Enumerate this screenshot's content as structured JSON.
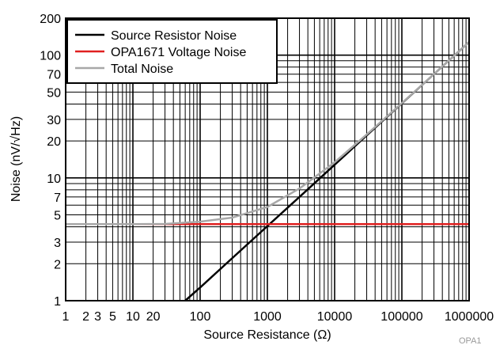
{
  "chart_data": {
    "type": "line",
    "xlabel": "Source Resistance (Ω)",
    "ylabel": "Noise (nV/√Hz)",
    "xscale": "log",
    "yscale": "log",
    "xlim": [
      1,
      1000000
    ],
    "ylim": [
      1,
      200
    ],
    "grid": true,
    "legend_position": "top-left",
    "x_ticks": [
      {
        "value": 1,
        "label": "1"
      },
      {
        "value": 2,
        "label": "2"
      },
      {
        "value": 3,
        "label": "3"
      },
      {
        "value": 5,
        "label": "5"
      },
      {
        "value": 10,
        "label": "10"
      },
      {
        "value": 20,
        "label": "20"
      },
      {
        "value": 100,
        "label": "100"
      },
      {
        "value": 1000,
        "label": "1000"
      },
      {
        "value": 10000,
        "label": "10000"
      },
      {
        "value": 100000,
        "label": "100000"
      },
      {
        "value": 1000000,
        "label": "1000000"
      }
    ],
    "y_ticks": [
      {
        "value": 1,
        "label": "1"
      },
      {
        "value": 2,
        "label": "2"
      },
      {
        "value": 3,
        "label": "3"
      },
      {
        "value": 5,
        "label": "5"
      },
      {
        "value": 7,
        "label": "7"
      },
      {
        "value": 10,
        "label": "10"
      },
      {
        "value": 20,
        "label": "20"
      },
      {
        "value": 30,
        "label": "30"
      },
      {
        "value": 50,
        "label": "50"
      },
      {
        "value": 70,
        "label": "70"
      },
      {
        "value": 100,
        "label": "100"
      },
      {
        "value": 200,
        "label": "200"
      }
    ],
    "series": [
      {
        "name": "Source Resistor Noise",
        "color": "#000000",
        "x": [
          60,
          100,
          300,
          1000,
          3000,
          10000,
          30000,
          100000,
          300000,
          1000000
        ],
        "y": [
          1.0,
          1.28,
          2.22,
          4.05,
          7.0,
          12.8,
          22.2,
          40.5,
          70.0,
          128
        ]
      },
      {
        "name": "OPA1671 Voltage Noise",
        "color": "#e02020",
        "x": [
          1,
          1000000
        ],
        "y": [
          4.2,
          4.2
        ]
      },
      {
        "name": "Total Noise",
        "color": "#a8a8a8",
        "x": [
          1,
          10,
          30,
          100,
          300,
          1000,
          3000,
          10000,
          30000,
          100000,
          300000,
          1000000
        ],
        "y": [
          4.2,
          4.2,
          4.22,
          4.4,
          4.75,
          5.8,
          8.2,
          13.4,
          22.6,
          40.7,
          70.1,
          128
        ]
      }
    ]
  },
  "footer_text": "OPA1"
}
